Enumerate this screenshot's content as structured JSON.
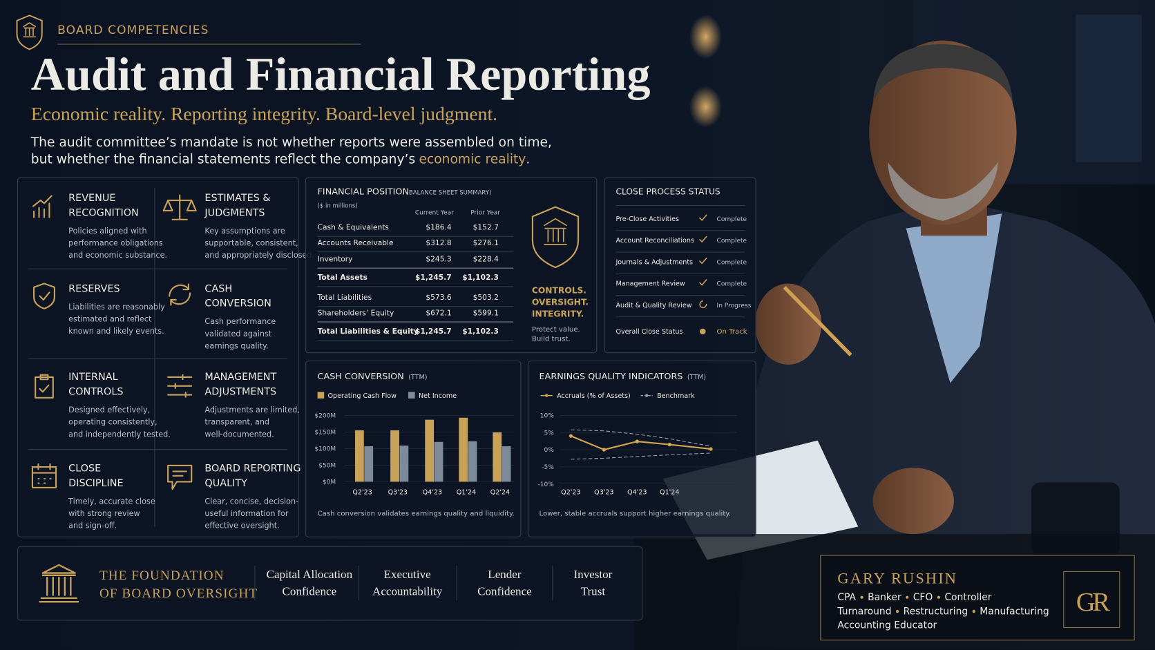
{
  "header": {
    "eyebrow": "BOARD COMPETENCIES",
    "title": "Audit and Financial Reporting",
    "subtitle": "Economic reality. Reporting integrity. Board-level judgment.",
    "intro_lines": [
      "The audit committee’s mandate is not whether reports were assembled on time,",
      "but whether the financial statements reflect the company’s"
    ],
    "intro_highlight": "economic reality",
    "intro_end": "."
  },
  "competencies": [
    {
      "title_lines": [
        "REVENUE",
        "RECOGNITION"
      ],
      "text_lines": [
        "Policies aligned with",
        "performance obligations",
        "and economic substance."
      ]
    },
    {
      "title_lines": [
        "ESTIMATES &",
        "JUDGMENTS"
      ],
      "text_lines": [
        "Key assumptions are",
        "supportable, consistent,",
        "and appropriately disclosed."
      ]
    },
    {
      "title_lines": [
        "RESERVES"
      ],
      "text_lines": [
        "Liabilities are reasonably",
        "estimated and reflect",
        "known and likely events."
      ]
    },
    {
      "title_lines": [
        "CASH",
        "CONVERSION"
      ],
      "text_lines": [
        "Cash performance",
        "validated against",
        "earnings quality."
      ]
    },
    {
      "title_lines": [
        "INTERNAL",
        "CONTROLS"
      ],
      "text_lines": [
        "Designed effectively,",
        "operating consistently,",
        "and independently tested."
      ]
    },
    {
      "title_lines": [
        "MANAGEMENT",
        "ADJUSTMENTS"
      ],
      "text_lines": [
        "Adjustments are limited,",
        "transparent, and",
        "well-documented."
      ]
    },
    {
      "title_lines": [
        "CLOSE",
        "DISCIPLINE"
      ],
      "text_lines": [
        "Timely, accurate close",
        "with strong review",
        "and sign-off."
      ]
    },
    {
      "title_lines": [
        "BOARD REPORTING",
        "QUALITY"
      ],
      "text_lines": [
        "Clear, concise, decision-",
        "useful information for",
        "effective oversight."
      ]
    }
  ],
  "financial_position": {
    "title": "FINANCIAL POSITION",
    "subtitle": "(BALANCE SHEET SUMMARY)",
    "units": "($ in millions)",
    "columns": [
      "Current Year",
      "Prior Year"
    ],
    "rows": [
      [
        "Cash & Equivalents",
        "$186.4",
        "$152.7"
      ],
      [
        "Accounts Receivable",
        "$312.8",
        "$276.1"
      ],
      [
        "Inventory",
        "$245.3",
        "$228.4"
      ],
      [
        "Total Assets",
        "$1,245.7",
        "$1,102.3"
      ],
      [
        "Total Liabilities",
        "$573.6",
        "$503.2"
      ],
      [
        "Shareholders’ Equity",
        "$672.1",
        "$599.1"
      ],
      [
        "Total Liabilities & Equity",
        "$1,245.7",
        "$1,102.3"
      ]
    ],
    "badge_lines": [
      "CONTROLS.",
      "OVERSIGHT.",
      "INTEGRITY."
    ],
    "note_lines": [
      "Protect value.",
      "Build trust."
    ]
  },
  "close_process": {
    "title": "CLOSE PROCESS STATUS",
    "rows": [
      {
        "label": "Pre-Close Activities",
        "status": "Complete",
        "done": true
      },
      {
        "label": "Account Reconciliations",
        "status": "Complete",
        "done": true
      },
      {
        "label": "Journals & Adjustments",
        "status": "Complete",
        "done": true
      },
      {
        "label": "Management Review",
        "status": "Complete",
        "done": true
      },
      {
        "label": "Audit & Quality Review",
        "status": "In Progress",
        "done": false
      }
    ],
    "overall": {
      "label": "Overall Close Status",
      "status": "On Track"
    }
  },
  "cash_conversion": {
    "type": "bar",
    "title": "CASH CONVERSION",
    "qualifier": "(TTM)",
    "categories": [
      "Q2'23",
      "Q3'23",
      "Q4'23",
      "Q1'24",
      "Q2'24"
    ],
    "series": [
      {
        "name": "Operating Cash Flow",
        "color": "#c9a25a",
        "values": [
          155,
          155,
          187,
          193,
          149
        ]
      },
      {
        "name": "Net Income",
        "color": "#7d8a99",
        "values": [
          107,
          109,
          120,
          122,
          107
        ]
      }
    ],
    "ylim": [
      0,
      200
    ],
    "yticks": [
      {
        "value": 0,
        "label": "$0M"
      },
      {
        "value": 50,
        "label": "$50M"
      },
      {
        "value": 100,
        "label": "$100M"
      },
      {
        "value": 150,
        "label": "$150M"
      },
      {
        "value": 200,
        "label": "$200M"
      }
    ],
    "caption": "Cash conversion validates earnings quality and liquidity."
  },
  "earnings_quality": {
    "type": "line",
    "title": "EARNINGS QUALITY INDICATORS",
    "qualifier": "(TTM)",
    "categories": [
      "Q2'23",
      "Q3'23",
      "Q4'23",
      "Q1'24",
      null
    ],
    "series": [
      {
        "name": "Accruals (% of Assets)",
        "color": "#d4a64e",
        "values": [
          4,
          0,
          2.4,
          1.5,
          0.2
        ]
      },
      {
        "name": "Benchmark",
        "color": "#9aa3ae",
        "values": [
          5.8,
          5.5,
          4.5,
          3.2,
          1
        ],
        "lower_values": [
          -2.8,
          -2.5,
          -2,
          -1.5,
          -1
        ]
      }
    ],
    "ylim": [
      -10,
      10
    ],
    "yticks": [
      {
        "value": 10,
        "label": "10%"
      },
      {
        "value": 5,
        "label": "5%"
      },
      {
        "value": 0,
        "label": "0%"
      },
      {
        "value": -5,
        "label": "-5%"
      },
      {
        "value": -10,
        "label": "-10%"
      }
    ],
    "caption": "Lower, stable accruals support higher earnings quality."
  },
  "foundation": {
    "title_lines": [
      "THE FOUNDATION",
      "OF BOARD OVERSIGHT"
    ],
    "items": [
      [
        "Capital Allocation",
        "Confidence"
      ],
      [
        "Executive",
        "Accountability"
      ],
      [
        "Lender",
        "Confidence"
      ],
      [
        "Investor",
        "Trust"
      ]
    ]
  },
  "profile": {
    "name": "GARY RUSHIN",
    "lines": [
      [
        "CPA",
        "Banker",
        "CFO",
        "Controller"
      ],
      [
        "Turnaround",
        "Restructuring",
        "Manufacturing"
      ],
      [
        "Accounting Educator"
      ]
    ],
    "monogram": "GR"
  }
}
